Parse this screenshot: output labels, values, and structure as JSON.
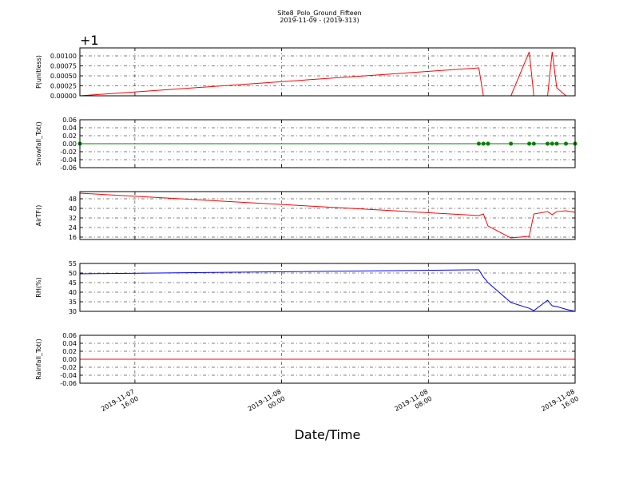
{
  "figure": {
    "title": "Site8_Polo_Ground_Fifteen",
    "subtitle": "2019-11-09 - (2019-313)"
  },
  "x_axis": {
    "label": "Date/Time",
    "xlim": [
      "2019-11-07T13:00",
      "2019-11-08T16:00"
    ],
    "xticks": [
      {
        "value": "2019-11-07T16:00",
        "label": "2019-11-07\n16:00"
      },
      {
        "value": "2019-11-08T00:00",
        "label": "2019-11-08\n00:00"
      },
      {
        "value": "2019-11-08T08:00",
        "label": "2019-11-08\n08:00"
      },
      {
        "value": "2019-11-08T16:00",
        "label": "2019-11-08\n16:00"
      }
    ]
  },
  "chart_data": [
    {
      "type": "line",
      "y_label": "P(unitless)",
      "offset_label": "+1",
      "grid": true,
      "x": [
        "2019-11-07T13:00",
        "2019-11-08T10:45",
        "2019-11-08T11:00",
        "2019-11-08T11:15",
        "2019-11-08T12:30",
        "2019-11-08T13:30",
        "2019-11-08T13:45",
        "2019-11-08T14:30",
        "2019-11-08T14:45",
        "2019-11-08T15:00",
        "2019-11-08T15:30",
        "2019-11-08T16:00"
      ],
      "ylim": [
        0,
        0.0012
      ],
      "yticks": [
        {
          "value": 0,
          "label": "0.00000"
        },
        {
          "value": 0.00025,
          "label": "0.00025"
        },
        {
          "value": 0.0005,
          "label": "0.00050"
        },
        {
          "value": 0.00075,
          "label": "0.00075"
        },
        {
          "value": 0.001,
          "label": "0.00100"
        }
      ],
      "series": [
        {
          "color": "#ff0000",
          "values": [
            0,
            0.0007,
            0,
            0,
            0,
            0.0011,
            0,
            0,
            0.0011,
            0.0002,
            0,
            0
          ]
        }
      ]
    },
    {
      "type": "line",
      "y_label": "Snowfall_Tot()",
      "grid": true,
      "x": [
        "2019-11-07T13:00",
        "2019-11-08T10:45",
        "2019-11-08T11:00",
        "2019-11-08T11:15",
        "2019-11-08T12:30",
        "2019-11-08T13:30",
        "2019-11-08T13:45",
        "2019-11-08T14:30",
        "2019-11-08T14:45",
        "2019-11-08T15:00",
        "2019-11-08T15:30",
        "2019-11-08T16:00"
      ],
      "ylim": [
        -0.06,
        0.06
      ],
      "yticks": [
        -0.06,
        -0.04,
        -0.02,
        {
          "value": 0,
          "label": "0.00"
        },
        0.02,
        0.04,
        0.06
      ],
      "series": [
        {
          "color": "#008000",
          "marker": "o",
          "values": [
            0,
            0,
            0,
            0,
            0,
            0,
            0,
            0,
            0,
            0,
            0,
            0
          ]
        }
      ]
    },
    {
      "type": "line",
      "y_label": "AirTF()",
      "grid": true,
      "x": [
        "2019-11-07T13:00",
        "2019-11-08T10:45",
        "2019-11-08T11:00",
        "2019-11-08T11:15",
        "2019-11-08T12:30",
        "2019-11-08T13:30",
        "2019-11-08T13:45",
        "2019-11-08T14:30",
        "2019-11-08T14:45",
        "2019-11-08T15:00",
        "2019-11-08T15:30",
        "2019-11-08T16:00"
      ],
      "ylim": [
        14,
        54
      ],
      "yticks": [
        16,
        24,
        32,
        40,
        48
      ],
      "series": [
        {
          "color": "#ff0000",
          "values": [
            52.7,
            34,
            35.3,
            25.3,
            15.3,
            16.7,
            35.3,
            37.3,
            34.7,
            37.3,
            38,
            36.7
          ]
        }
      ]
    },
    {
      "type": "line",
      "y_label": "RH(%)",
      "grid": true,
      "x": [
        "2019-11-07T13:00",
        "2019-11-08T10:45",
        "2019-11-08T11:00",
        "2019-11-08T11:15",
        "2019-11-08T12:30",
        "2019-11-08T13:30",
        "2019-11-08T13:45",
        "2019-11-08T14:30",
        "2019-11-08T14:45",
        "2019-11-08T15:00",
        "2019-11-08T15:30",
        "2019-11-08T16:00"
      ],
      "ylim": [
        30,
        55
      ],
      "yticks": [
        30,
        35,
        40,
        45,
        50,
        55
      ],
      "series": [
        {
          "color": "#0000ff",
          "values": [
            49.6,
            51.7,
            47.9,
            45,
            34.6,
            31.6,
            30.4,
            35.8,
            32.9,
            32.5,
            31.1,
            30
          ]
        }
      ]
    },
    {
      "type": "line",
      "y_label": "Rainfall_Tot()",
      "grid": true,
      "x": [
        "2019-11-07T13:00",
        "2019-11-08T10:45",
        "2019-11-08T11:00",
        "2019-11-08T11:15",
        "2019-11-08T12:30",
        "2019-11-08T13:30",
        "2019-11-08T13:45",
        "2019-11-08T14:30",
        "2019-11-08T14:45",
        "2019-11-08T15:00",
        "2019-11-08T15:30",
        "2019-11-08T16:00"
      ],
      "ylim": [
        -0.06,
        0.06
      ],
      "yticks": [
        -0.06,
        -0.04,
        -0.02,
        {
          "value": 0,
          "label": "0.00"
        },
        0.02,
        0.04,
        0.06
      ],
      "series": [
        {
          "color": "#ff0000",
          "values": [
            0,
            0,
            0,
            0,
            0,
            0,
            0,
            0,
            0,
            0,
            0,
            0
          ]
        }
      ]
    }
  ]
}
